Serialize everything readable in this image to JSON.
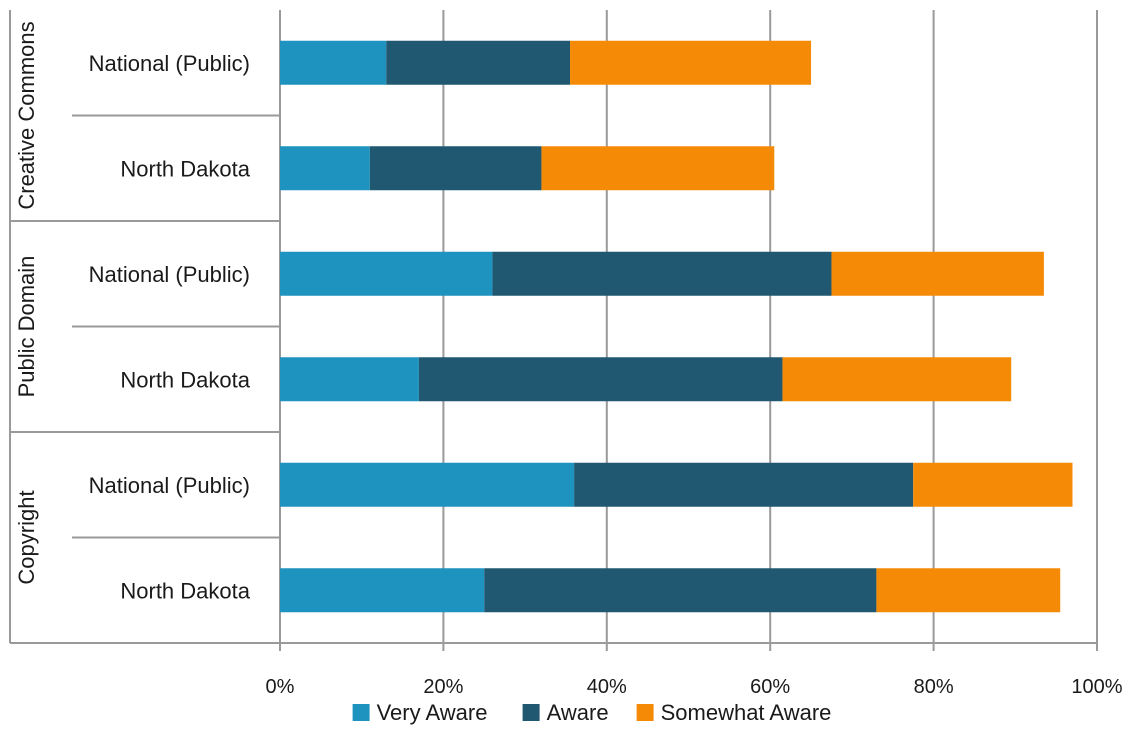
{
  "chart_data": {
    "type": "bar",
    "orientation": "horizontal",
    "stacked": true,
    "title": "",
    "xlabel": "",
    "ylabel": "",
    "xlim": [
      0,
      100
    ],
    "x_ticks": [
      "0%",
      "20%",
      "40%",
      "60%",
      "80%",
      "100%"
    ],
    "grid": "vertical",
    "legend_position": "bottom",
    "groups": [
      {
        "label": "Creative Commons",
        "categories": [
          "National (Public)",
          "North Dakota"
        ]
      },
      {
        "label": "Public Domain",
        "categories": [
          "National (Public)",
          "North Dakota"
        ]
      },
      {
        "label": "Copyright",
        "categories": [
          "National (Public)",
          "North Dakota"
        ]
      }
    ],
    "series": [
      {
        "name": "Very Aware",
        "color": "#1e93bf",
        "values": [
          13,
          11,
          26,
          17,
          36,
          25
        ]
      },
      {
        "name": "Aware",
        "color": "#1f5870",
        "values": [
          22.5,
          21,
          41.5,
          44.5,
          41.5,
          48
        ]
      },
      {
        "name": "Somewhat Aware",
        "color": "#f58a07",
        "values": [
          29.5,
          28.5,
          26,
          28,
          19.5,
          22.5
        ]
      }
    ]
  }
}
